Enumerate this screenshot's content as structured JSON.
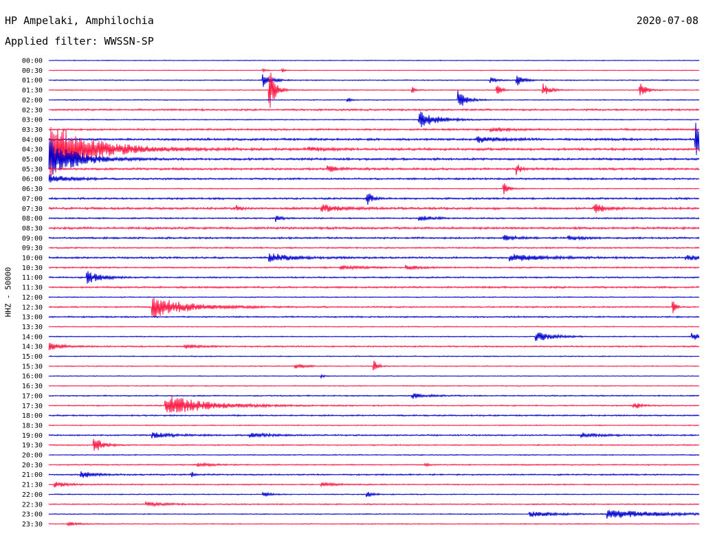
{
  "header": {
    "station": "HP Ampelaki, Amphilochia",
    "date": "2020-07-08",
    "filter": "Applied filter: WWSSN-SP"
  },
  "chart_data": {
    "type": "line",
    "title": "HP Ampelaki, Amphilochia",
    "subtitle": "Applied filter: WWSSN-SP",
    "date": "2020-07-08",
    "ylabel": "HHZ - 50000",
    "xlabel": "",
    "grid": false,
    "colors": {
      "odd_rows": "#0000d0",
      "even_rows": "#ff1744"
    },
    "rows": [
      {
        "label": "00:00",
        "noise": 0.6,
        "events": []
      },
      {
        "label": "00:30",
        "noise": 0.6,
        "events": [
          {
            "x": 0.33,
            "amp": 3,
            "dur": 0.004
          },
          {
            "x": 0.36,
            "amp": 2.5,
            "dur": 0.003
          }
        ]
      },
      {
        "label": "01:00",
        "noise": 0.8,
        "events": [
          {
            "x": 0.33,
            "amp": 10,
            "dur": 0.012
          },
          {
            "x": 0.68,
            "amp": 4,
            "dur": 0.01
          },
          {
            "x": 0.72,
            "amp": 9,
            "dur": 0.01
          }
        ]
      },
      {
        "label": "01:30",
        "noise": 0.8,
        "events": [
          {
            "x": 0.34,
            "amp": 30,
            "dur": 0.008
          },
          {
            "x": 0.56,
            "amp": 4,
            "dur": 0.004
          },
          {
            "x": 0.69,
            "amp": 7,
            "dur": 0.006
          },
          {
            "x": 0.76,
            "amp": 9,
            "dur": 0.01
          },
          {
            "x": 0.91,
            "amp": 9,
            "dur": 0.01
          }
        ]
      },
      {
        "label": "02:00",
        "noise": 0.8,
        "events": [
          {
            "x": 0.63,
            "amp": 13,
            "dur": 0.012
          },
          {
            "x": 0.46,
            "amp": 3,
            "dur": 0.005
          }
        ]
      },
      {
        "label": "02:30",
        "noise": 1.5,
        "events": []
      },
      {
        "label": "03:00",
        "noise": 0.8,
        "events": [
          {
            "x": 0.57,
            "amp": 12,
            "dur": 0.028
          }
        ]
      },
      {
        "label": "03:30",
        "noise": 1.5,
        "events": [
          {
            "x": 0.68,
            "amp": 3,
            "dur": 0.03
          }
        ]
      },
      {
        "label": "04:00",
        "noise": 1.8,
        "events": [
          {
            "x": 0.66,
            "amp": 5,
            "dur": 0.03
          },
          {
            "x": 0.995,
            "amp": 24,
            "dur": 0.012
          }
        ]
      },
      {
        "label": "04:30",
        "noise": 2,
        "events": [
          {
            "x": 0.0,
            "amp": 42,
            "dur": 0.06
          },
          {
            "x": 0.4,
            "amp": 4,
            "dur": 0.02
          }
        ]
      },
      {
        "label": "05:00",
        "noise": 1.8,
        "events": [
          {
            "x": 0.0,
            "amp": 28,
            "dur": 0.04
          }
        ]
      },
      {
        "label": "05:30",
        "noise": 1.8,
        "events": [
          {
            "x": 0.72,
            "amp": 8,
            "dur": 0.006
          },
          {
            "x": 0.43,
            "amp": 4,
            "dur": 0.02
          }
        ]
      },
      {
        "label": "06:00",
        "noise": 1.5,
        "events": [
          {
            "x": 0.0,
            "amp": 6,
            "dur": 0.03
          }
        ]
      },
      {
        "label": "06:30",
        "noise": 0.8,
        "events": [
          {
            "x": 0.7,
            "amp": 8,
            "dur": 0.008
          }
        ]
      },
      {
        "label": "07:00",
        "noise": 1.5,
        "events": [
          {
            "x": 0.49,
            "amp": 10,
            "dur": 0.008
          }
        ]
      },
      {
        "label": "07:30",
        "noise": 1.8,
        "events": [
          {
            "x": 0.29,
            "amp": 6,
            "dur": 0.004
          },
          {
            "x": 0.42,
            "amp": 6,
            "dur": 0.03
          },
          {
            "x": 0.84,
            "amp": 7,
            "dur": 0.015
          }
        ]
      },
      {
        "label": "08:00",
        "noise": 1.2,
        "events": [
          {
            "x": 0.35,
            "amp": 6,
            "dur": 0.006
          },
          {
            "x": 0.57,
            "amp": 4,
            "dur": 0.02
          }
        ]
      },
      {
        "label": "08:30",
        "noise": 1.8,
        "events": []
      },
      {
        "label": "09:00",
        "noise": 1.5,
        "events": [
          {
            "x": 0.7,
            "amp": 4,
            "dur": 0.02
          },
          {
            "x": 0.8,
            "amp": 3,
            "dur": 0.02
          }
        ]
      },
      {
        "label": "09:30",
        "noise": 1.2,
        "events": []
      },
      {
        "label": "10:00",
        "noise": 1.5,
        "events": [
          {
            "x": 0.34,
            "amp": 6,
            "dur": 0.04
          },
          {
            "x": 0.71,
            "amp": 5,
            "dur": 0.05
          },
          {
            "x": 0.98,
            "amp": 4,
            "dur": 0.02
          }
        ]
      },
      {
        "label": "10:30",
        "noise": 1.2,
        "events": [
          {
            "x": 0.45,
            "amp": 3,
            "dur": 0.03
          },
          {
            "x": 0.55,
            "amp": 3,
            "dur": 0.02
          }
        ]
      },
      {
        "label": "11:00",
        "noise": 1.2,
        "events": [
          {
            "x": 0.06,
            "amp": 9,
            "dur": 0.02
          }
        ]
      },
      {
        "label": "11:30",
        "noise": 1.5,
        "events": []
      },
      {
        "label": "12:00",
        "noise": 0.8,
        "events": []
      },
      {
        "label": "12:30",
        "noise": 1.2,
        "events": [
          {
            "x": 0.16,
            "amp": 16,
            "dur": 0.05
          },
          {
            "x": 0.96,
            "amp": 10,
            "dur": 0.004
          }
        ]
      },
      {
        "label": "13:00",
        "noise": 1.2,
        "events": []
      },
      {
        "label": "13:30",
        "noise": 0.8,
        "events": []
      },
      {
        "label": "14:00",
        "noise": 0.8,
        "events": [
          {
            "x": 0.75,
            "amp": 7,
            "dur": 0.025
          },
          {
            "x": 0.99,
            "amp": 6,
            "dur": 0.01
          }
        ]
      },
      {
        "label": "14:30",
        "noise": 1.2,
        "events": [
          {
            "x": 0.0,
            "amp": 5,
            "dur": 0.02
          },
          {
            "x": 0.21,
            "amp": 3,
            "dur": 0.02
          }
        ]
      },
      {
        "label": "15:00",
        "noise": 0.8,
        "events": []
      },
      {
        "label": "15:30",
        "noise": 0.8,
        "events": [
          {
            "x": 0.5,
            "amp": 10,
            "dur": 0.005
          },
          {
            "x": 0.38,
            "amp": 3,
            "dur": 0.015
          }
        ]
      },
      {
        "label": "16:00",
        "noise": 0.6,
        "events": [
          {
            "x": 0.42,
            "amp": 3,
            "dur": 0.004
          }
        ]
      },
      {
        "label": "16:30",
        "noise": 0.8,
        "events": []
      },
      {
        "label": "17:00",
        "noise": 1.0,
        "events": [
          {
            "x": 0.56,
            "amp": 4,
            "dur": 0.02
          }
        ]
      },
      {
        "label": "17:30",
        "noise": 1.0,
        "events": [
          {
            "x": 0.18,
            "amp": 15,
            "dur": 0.06
          },
          {
            "x": 0.9,
            "amp": 5,
            "dur": 0.01
          }
        ]
      },
      {
        "label": "18:00",
        "noise": 1.2,
        "events": []
      },
      {
        "label": "18:30",
        "noise": 0.8,
        "events": []
      },
      {
        "label": "19:00",
        "noise": 1.2,
        "events": [
          {
            "x": 0.16,
            "amp": 4,
            "dur": 0.03
          },
          {
            "x": 0.31,
            "amp": 3,
            "dur": 0.03
          },
          {
            "x": 0.82,
            "amp": 3,
            "dur": 0.03
          }
        ]
      },
      {
        "label": "19:30",
        "noise": 1.0,
        "events": [
          {
            "x": 0.07,
            "amp": 12,
            "dur": 0.012
          }
        ]
      },
      {
        "label": "20:00",
        "noise": 0.8,
        "events": []
      },
      {
        "label": "20:30",
        "noise": 1.0,
        "events": [
          {
            "x": 0.23,
            "amp": 3,
            "dur": 0.02
          },
          {
            "x": 0.58,
            "amp": 3,
            "dur": 0.004
          }
        ]
      },
      {
        "label": "21:00",
        "noise": 1.2,
        "events": [
          {
            "x": 0.05,
            "amp": 5,
            "dur": 0.02
          },
          {
            "x": 0.22,
            "amp": 4,
            "dur": 0.004
          }
        ]
      },
      {
        "label": "21:30",
        "noise": 1.0,
        "events": [
          {
            "x": 0.01,
            "amp": 4,
            "dur": 0.02
          },
          {
            "x": 0.42,
            "amp": 3,
            "dur": 0.02
          }
        ]
      },
      {
        "label": "22:00",
        "noise": 0.8,
        "events": [
          {
            "x": 0.33,
            "amp": 4,
            "dur": 0.01
          },
          {
            "x": 0.49,
            "amp": 5,
            "dur": 0.008
          }
        ]
      },
      {
        "label": "22:30",
        "noise": 1.0,
        "events": [
          {
            "x": 0.15,
            "amp": 3,
            "dur": 0.03
          }
        ]
      },
      {
        "label": "23:00",
        "noise": 0.8,
        "events": [
          {
            "x": 0.74,
            "amp": 4,
            "dur": 0.04
          },
          {
            "x": 0.86,
            "amp": 7,
            "dur": 0.07
          }
        ]
      },
      {
        "label": "23:30",
        "noise": 0.8,
        "events": [
          {
            "x": 0.03,
            "amp": 3,
            "dur": 0.015
          }
        ]
      }
    ]
  }
}
